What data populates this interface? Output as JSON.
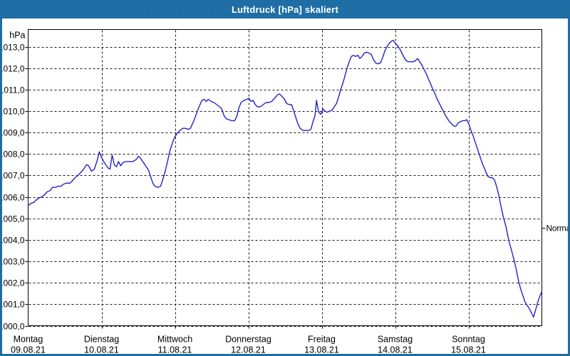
{
  "window": {
    "title": "Luftdruck [hPa] skaliert"
  },
  "colors": {
    "titlebar": "#1e6ea5",
    "window_border": "#1e6ea5",
    "plot_frame": "#000000",
    "gridline": "#1a1a1a",
    "series_line": "#2323c8",
    "text": "#000000",
    "background": "#ffffff"
  },
  "chart_data": {
    "type": "line",
    "title": "Luftdruck [hPa] skaliert",
    "ylabel": "hPa",
    "y_unit_label": "hPa",
    "ylim": [
      1000.0,
      1013.8
    ],
    "xlim_days": [
      0,
      7
    ],
    "grid": "dashed horizontal per 1 hPa and vertical per day",
    "legend_position": "none",
    "y_ticks": [
      {
        "value": 1013.0,
        "label": "1013,0"
      },
      {
        "value": 1012.0,
        "label": "1012,0"
      },
      {
        "value": 1011.0,
        "label": "1011,0"
      },
      {
        "value": 1010.0,
        "label": "1010,0"
      },
      {
        "value": 1009.0,
        "label": "1009,0"
      },
      {
        "value": 1008.0,
        "label": "1008,0"
      },
      {
        "value": 1007.0,
        "label": "1007,0"
      },
      {
        "value": 1006.0,
        "label": "1006,0"
      },
      {
        "value": 1005.0,
        "label": "1005,0"
      },
      {
        "value": 1004.0,
        "label": "1004,0"
      },
      {
        "value": 1003.0,
        "label": "1003,0"
      },
      {
        "value": 1002.0,
        "label": "1002,0"
      },
      {
        "value": 1001.0,
        "label": "1001,0"
      },
      {
        "value": 1000.0,
        "label": "1000,0"
      }
    ],
    "x_days": [
      {
        "name": "Montag",
        "date": "09.08.21"
      },
      {
        "name": "Dienstag",
        "date": "10.08.21"
      },
      {
        "name": "Mittwoch",
        "date": "11.08.21"
      },
      {
        "name": "Donnerstag",
        "date": "12.08.21"
      },
      {
        "name": "Freitag",
        "date": "13.08.21"
      },
      {
        "name": "Samstag",
        "date": "14.08.21"
      },
      {
        "name": "Sonntag",
        "date": "15.08.21"
      }
    ],
    "normal_marker": {
      "label": "Normal",
      "value": 1004.55
    },
    "series": [
      {
        "name": "Luftdruck",
        "unit": "hPa",
        "points": [
          [
            0.0,
            1005.6
          ],
          [
            0.039,
            1005.7
          ],
          [
            0.078,
            1005.75
          ],
          [
            0.107,
            1005.85
          ],
          [
            0.146,
            1005.95
          ],
          [
            0.184,
            1006.0
          ],
          [
            0.223,
            1006.1
          ],
          [
            0.262,
            1006.25
          ],
          [
            0.301,
            1006.3
          ],
          [
            0.33,
            1006.45
          ],
          [
            0.369,
            1006.45
          ],
          [
            0.408,
            1006.5
          ],
          [
            0.446,
            1006.5
          ],
          [
            0.485,
            1006.6
          ],
          [
            0.524,
            1006.65
          ],
          [
            0.563,
            1006.63
          ],
          [
            0.602,
            1006.75
          ],
          [
            0.64,
            1006.9
          ],
          [
            0.679,
            1007.0
          ],
          [
            0.718,
            1007.15
          ],
          [
            0.757,
            1007.3
          ],
          [
            0.796,
            1007.5
          ],
          [
            0.825,
            1007.45
          ],
          [
            0.863,
            1007.2
          ],
          [
            0.902,
            1007.3
          ],
          [
            0.941,
            1007.7
          ],
          [
            0.97,
            1008.1
          ],
          [
            1.0,
            1007.85
          ],
          [
            1.029,
            1007.65
          ],
          [
            1.058,
            1007.5
          ],
          [
            1.087,
            1007.35
          ],
          [
            1.116,
            1007.3
          ],
          [
            1.145,
            1007.95
          ],
          [
            1.174,
            1007.5
          ],
          [
            1.203,
            1007.4
          ],
          [
            1.232,
            1007.65
          ],
          [
            1.261,
            1007.45
          ],
          [
            1.29,
            1007.6
          ],
          [
            1.329,
            1007.65
          ],
          [
            1.378,
            1007.65
          ],
          [
            1.426,
            1007.65
          ],
          [
            1.475,
            1007.75
          ],
          [
            1.504,
            1007.9
          ],
          [
            1.533,
            1007.8
          ],
          [
            1.572,
            1007.6
          ],
          [
            1.611,
            1007.4
          ],
          [
            1.64,
            1007.25
          ],
          [
            1.669,
            1006.95
          ],
          [
            1.698,
            1006.65
          ],
          [
            1.727,
            1006.5
          ],
          [
            1.766,
            1006.45
          ],
          [
            1.805,
            1006.5
          ],
          [
            1.834,
            1006.8
          ],
          [
            1.872,
            1007.25
          ],
          [
            1.902,
            1007.7
          ],
          [
            1.931,
            1008.15
          ],
          [
            1.97,
            1008.55
          ],
          [
            1.999,
            1008.8
          ],
          [
            2.028,
            1008.95
          ],
          [
            2.067,
            1009.1
          ],
          [
            2.106,
            1009.2
          ],
          [
            2.144,
            1009.2
          ],
          [
            2.183,
            1009.15
          ],
          [
            2.212,
            1009.2
          ],
          [
            2.251,
            1009.5
          ],
          [
            2.29,
            1009.85
          ],
          [
            2.329,
            1010.2
          ],
          [
            2.367,
            1010.5
          ],
          [
            2.397,
            1010.55
          ],
          [
            2.426,
            1010.45
          ],
          [
            2.455,
            1010.55
          ],
          [
            2.493,
            1010.45
          ],
          [
            2.532,
            1010.4
          ],
          [
            2.571,
            1010.3
          ],
          [
            2.61,
            1010.2
          ],
          [
            2.639,
            1010.1
          ],
          [
            2.668,
            1009.8
          ],
          [
            2.697,
            1009.65
          ],
          [
            2.736,
            1009.6
          ],
          [
            2.775,
            1009.55
          ],
          [
            2.814,
            1009.55
          ],
          [
            2.843,
            1009.75
          ],
          [
            2.872,
            1010.15
          ],
          [
            2.901,
            1010.4
          ],
          [
            2.94,
            1010.5
          ],
          [
            2.979,
            1010.55
          ],
          [
            3.008,
            1010.6
          ],
          [
            3.037,
            1010.45
          ],
          [
            3.066,
            1010.5
          ],
          [
            3.095,
            1010.3
          ],
          [
            3.124,
            1010.2
          ],
          [
            3.163,
            1010.2
          ],
          [
            3.202,
            1010.3
          ],
          [
            3.241,
            1010.4
          ],
          [
            3.279,
            1010.4
          ],
          [
            3.318,
            1010.45
          ],
          [
            3.357,
            1010.6
          ],
          [
            3.396,
            1010.75
          ],
          [
            3.425,
            1010.8
          ],
          [
            3.454,
            1010.7
          ],
          [
            3.493,
            1010.55
          ],
          [
            3.522,
            1010.35
          ],
          [
            3.561,
            1010.3
          ],
          [
            3.59,
            1010.3
          ],
          [
            3.619,
            1010.0
          ],
          [
            3.648,
            1009.7
          ],
          [
            3.677,
            1009.4
          ],
          [
            3.706,
            1009.2
          ],
          [
            3.745,
            1009.1
          ],
          [
            3.784,
            1009.1
          ],
          [
            3.823,
            1009.1
          ],
          [
            3.852,
            1009.15
          ],
          [
            3.881,
            1009.5
          ],
          [
            3.91,
            1009.8
          ],
          [
            3.929,
            1010.5
          ],
          [
            3.958,
            1009.95
          ],
          [
            3.988,
            1009.85
          ],
          [
            4.017,
            1010.1
          ],
          [
            4.046,
            1010.0
          ],
          [
            4.075,
            1009.95
          ],
          [
            4.104,
            1010.0
          ],
          [
            4.142,
            1010.05
          ],
          [
            4.172,
            1010.2
          ],
          [
            4.201,
            1010.35
          ],
          [
            4.23,
            1010.65
          ],
          [
            4.259,
            1011.0
          ],
          [
            4.288,
            1011.3
          ],
          [
            4.317,
            1011.65
          ],
          [
            4.346,
            1012.0
          ],
          [
            4.375,
            1012.3
          ],
          [
            4.404,
            1012.55
          ],
          [
            4.433,
            1012.6
          ],
          [
            4.462,
            1012.55
          ],
          [
            4.492,
            1012.6
          ],
          [
            4.521,
            1012.45
          ],
          [
            4.55,
            1012.55
          ],
          [
            4.579,
            1012.7
          ],
          [
            4.617,
            1012.75
          ],
          [
            4.646,
            1012.7
          ],
          [
            4.676,
            1012.65
          ],
          [
            4.705,
            1012.4
          ],
          [
            4.734,
            1012.25
          ],
          [
            4.763,
            1012.2
          ],
          [
            4.802,
            1012.25
          ],
          [
            4.831,
            1012.5
          ],
          [
            4.86,
            1012.8
          ],
          [
            4.889,
            1013.0
          ],
          [
            4.918,
            1013.15
          ],
          [
            4.947,
            1013.25
          ],
          [
            4.976,
            1013.3
          ],
          [
            5.005,
            1013.15
          ],
          [
            5.035,
            1013.05
          ],
          [
            5.064,
            1012.9
          ],
          [
            5.093,
            1012.7
          ],
          [
            5.122,
            1012.5
          ],
          [
            5.151,
            1012.35
          ],
          [
            5.18,
            1012.3
          ],
          [
            5.219,
            1012.3
          ],
          [
            5.248,
            1012.3
          ],
          [
            5.277,
            1012.35
          ],
          [
            5.306,
            1012.45
          ],
          [
            5.335,
            1012.3
          ],
          [
            5.364,
            1012.15
          ],
          [
            5.394,
            1011.95
          ],
          [
            5.423,
            1011.75
          ],
          [
            5.452,
            1011.5
          ],
          [
            5.481,
            1011.3
          ],
          [
            5.51,
            1011.05
          ],
          [
            5.539,
            1010.85
          ],
          [
            5.568,
            1010.6
          ],
          [
            5.597,
            1010.4
          ],
          [
            5.626,
            1010.2
          ],
          [
            5.656,
            1010.0
          ],
          [
            5.685,
            1009.8
          ],
          [
            5.714,
            1009.65
          ],
          [
            5.743,
            1009.5
          ],
          [
            5.772,
            1009.4
          ],
          [
            5.801,
            1009.3
          ],
          [
            5.83,
            1009.3
          ],
          [
            5.859,
            1009.45
          ],
          [
            5.888,
            1009.5
          ],
          [
            5.917,
            1009.55
          ],
          [
            5.947,
            1009.55
          ],
          [
            5.976,
            1009.6
          ],
          [
            6.005,
            1009.4
          ],
          [
            6.034,
            1009.1
          ],
          [
            6.063,
            1008.85
          ],
          [
            6.092,
            1008.55
          ],
          [
            6.121,
            1008.25
          ],
          [
            6.15,
            1007.95
          ],
          [
            6.18,
            1007.65
          ],
          [
            6.209,
            1007.4
          ],
          [
            6.238,
            1007.15
          ],
          [
            6.267,
            1006.95
          ],
          [
            6.296,
            1006.9
          ],
          [
            6.325,
            1006.9
          ],
          [
            6.354,
            1006.8
          ],
          [
            6.383,
            1006.5
          ],
          [
            6.412,
            1006.1
          ],
          [
            6.441,
            1005.6
          ],
          [
            6.48,
            1005.0
          ],
          [
            6.509,
            1004.65
          ],
          [
            6.548,
            1004.0
          ],
          [
            6.587,
            1003.5
          ],
          [
            6.626,
            1003.0
          ],
          [
            6.655,
            1002.55
          ],
          [
            6.684,
            1002.05
          ],
          [
            6.713,
            1001.7
          ],
          [
            6.742,
            1001.4
          ],
          [
            6.771,
            1001.1
          ],
          [
            6.8,
            1000.95
          ],
          [
            6.829,
            1000.8
          ],
          [
            6.858,
            1000.6
          ],
          [
            6.887,
            1000.4
          ],
          [
            6.916,
            1000.75
          ],
          [
            6.945,
            1001.1
          ],
          [
            6.975,
            1001.4
          ],
          [
            6.994,
            1001.55
          ]
        ]
      }
    ]
  }
}
